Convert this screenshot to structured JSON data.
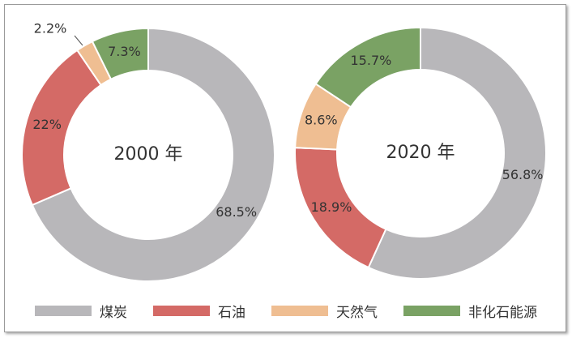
{
  "chart_data": [
    {
      "type": "pie",
      "variant": "donut",
      "center_label": "2000 年",
      "start_at": "top",
      "direction": "clockwise",
      "slices": [
        {
          "name": "煤炭",
          "value": 68.5,
          "label": "68.5%",
          "color": "#b8b7ba"
        },
        {
          "name": "石油",
          "value": 22,
          "label": "22%",
          "color": "#d46a66"
        },
        {
          "name": "天然气",
          "value": 2.2,
          "label": "2.2%",
          "color": "#efbe92"
        },
        {
          "name": "非化石能源",
          "value": 7.3,
          "label": "7.3%",
          "color": "#7aa264"
        }
      ]
    },
    {
      "type": "pie",
      "variant": "donut",
      "center_label": "2020 年",
      "start_at": "top",
      "direction": "clockwise",
      "slices": [
        {
          "name": "煤炭",
          "value": 56.8,
          "label": "56.8%",
          "color": "#b8b7ba"
        },
        {
          "name": "石油",
          "value": 18.9,
          "label": "18.9%",
          "color": "#d46a66"
        },
        {
          "name": "天然气",
          "value": 8.6,
          "label": "8.6%",
          "color": "#efbe92"
        },
        {
          "name": "非化石能源",
          "value": 15.7,
          "label": "15.7%",
          "color": "#7aa264"
        }
      ]
    }
  ],
  "legend": {
    "placement": "bottom",
    "items": [
      {
        "label": "煤炭",
        "color": "#b8b7ba"
      },
      {
        "label": "石油",
        "color": "#d46a66"
      },
      {
        "label": "天然气",
        "color": "#efbe92"
      },
      {
        "label": "非化石能源",
        "color": "#7aa264"
      }
    ]
  }
}
